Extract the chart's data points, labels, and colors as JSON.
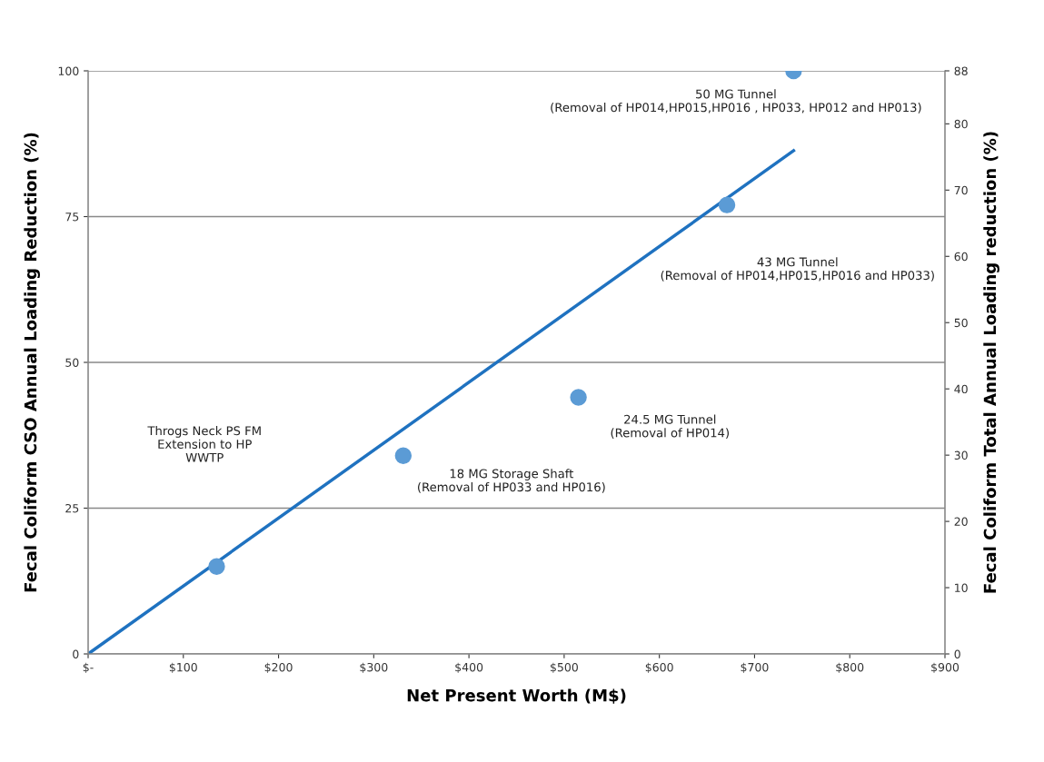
{
  "chart_data": {
    "type": "scatter",
    "xlabel": "Net Present Worth (M$)",
    "ylabel": "Fecal Coliform CSO Annual Loading Reduction (%)",
    "y2label": "Fecal Coliform Total Annual Loading reduction (%)",
    "xlim": [
      0,
      900
    ],
    "xticks": [
      {
        "value": 0,
        "label": "$-"
      },
      {
        "value": 100,
        "label": "$100"
      },
      {
        "value": 200,
        "label": "$200"
      },
      {
        "value": 300,
        "label": "$300"
      },
      {
        "value": 400,
        "label": "$400"
      },
      {
        "value": 500,
        "label": "$500"
      },
      {
        "value": 600,
        "label": "$600"
      },
      {
        "value": 700,
        "label": "$700"
      },
      {
        "value": 800,
        "label": "$800"
      },
      {
        "value": 900,
        "label": "$900"
      }
    ],
    "ylim": [
      0,
      100
    ],
    "yticks": [
      0,
      25,
      50,
      75,
      100
    ],
    "y2lim": [
      0,
      88
    ],
    "y2ticks": [
      0,
      10,
      20,
      30,
      40,
      50,
      60,
      70,
      80,
      88
    ],
    "grid": "y",
    "legend": false,
    "marker": "circle",
    "series": [
      {
        "color": "#5b9bd5",
        "x": [
          135,
          331,
          515,
          671,
          741
        ],
        "values": [
          15,
          34,
          44,
          77,
          100
        ]
      },
      {
        "type": "line",
        "color": "#1f72c0",
        "x": [
          0,
          741
        ],
        "values": [
          0,
          86.3
        ],
        "marker": "none",
        "line_style": "solid"
      }
    ],
    "annotations": [
      "Throgs Neck PS FM\nExtension to HP\nWWTP",
      "18 MG Storage Shaft\n(Removal of HP033 and HP016)",
      "24.5 MG Tunnel\n(Removal of HP014)",
      "43 MG Tunnel\n(Removal of HP014,HP015,HP016 and HP033)",
      "50 MG Tunnel\n(Removal of HP014,HP015,HP016 , HP033, HP012 and HP013)"
    ]
  }
}
